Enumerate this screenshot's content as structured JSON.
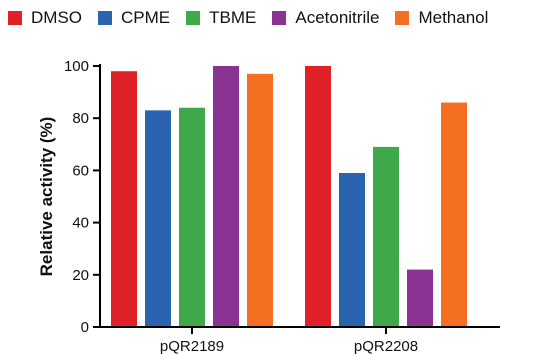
{
  "chart_data": {
    "type": "bar",
    "categories": [
      "pQR2189",
      "pQR2208"
    ],
    "series": [
      {
        "name": "DMSO",
        "color": "#e02127",
        "values": [
          98,
          100
        ]
      },
      {
        "name": "CPME",
        "color": "#2a64ae",
        "values": [
          83,
          59
        ]
      },
      {
        "name": "TBME",
        "color": "#3fa84a",
        "values": [
          84,
          69
        ]
      },
      {
        "name": "Acetonitrile",
        "color": "#8a3393",
        "values": [
          100,
          22
        ]
      },
      {
        "name": "Methanol",
        "color": "#f46f21",
        "values": [
          97,
          86
        ]
      }
    ],
    "ylabel": "Relative activity (%)",
    "ylim": [
      0,
      100
    ],
    "yticks": [
      0,
      20,
      40,
      60,
      80,
      100
    ],
    "grid": false,
    "legend_position": "top"
  }
}
